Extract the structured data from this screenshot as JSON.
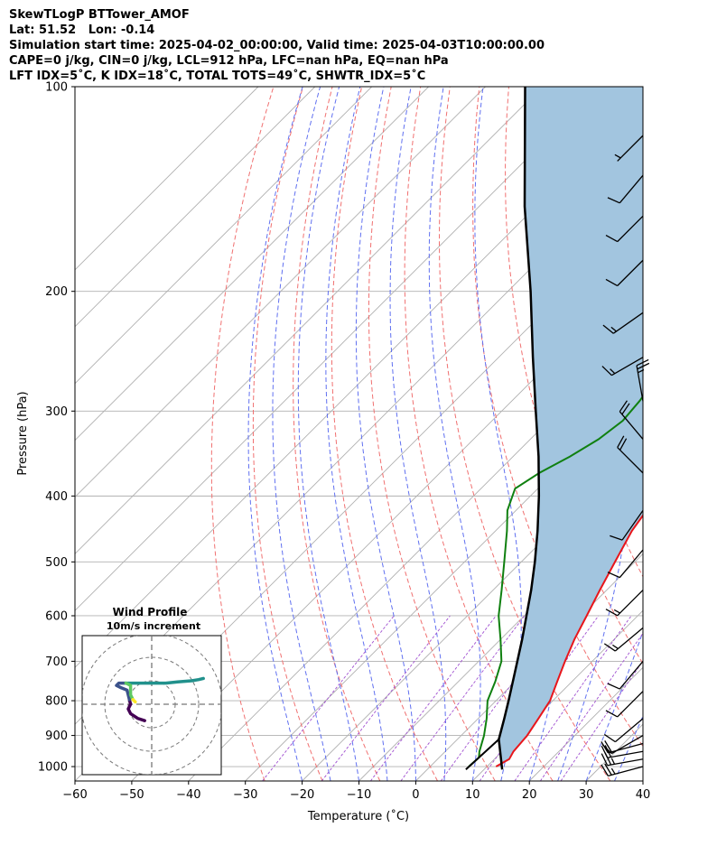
{
  "header": {
    "line1": "SkewTLogP BTTower_AMOF",
    "line2": "Lat: 51.52   Lon: -0.14",
    "line3": "Simulation start time: 2025-04-02_00:00:00, Valid time: 2025-04-03T10:00:00.00",
    "line4": "CAPE=0 j/kg, CIN=0 j/kg, LCL=912 hPa, LFC=nan hPa, EQ=nan hPa",
    "line5": "LFT IDX=5˚C, K IDX=18˚C, TOTAL TOTS=49˚C, SHWTR_IDX=5˚C"
  },
  "chart_data": [
    {
      "type": "line",
      "subtype": "skew-t log-p",
      "xlabel": "Temperature (˚C)",
      "ylabel": "Pressure (hPa)",
      "xlim": [
        -60,
        40
      ],
      "ylim_pressure": [
        1050,
        100
      ],
      "y_scale": "log",
      "x_ticks": [
        -60,
        -50,
        -40,
        -30,
        -20,
        -10,
        0,
        10,
        20,
        30,
        40
      ],
      "x_tick_labels": [
        "−60",
        "−50",
        "−40",
        "−30",
        "−20",
        "−10",
        "0",
        "10",
        "20",
        "30",
        "40"
      ],
      "y_ticks": [
        1000,
        900,
        800,
        700,
        600,
        500,
        400,
        300,
        200,
        100
      ],
      "y_tick_labels": [
        "1000",
        "900",
        "800",
        "700",
        "600",
        "500",
        "400",
        "300",
        "200",
        "100"
      ],
      "grid": true,
      "colors": {
        "temperature": "#e8161b",
        "dewpoint": "#108010",
        "parcel": "#000000",
        "shade": "#a2c5df",
        "isotherm": "#b0b0b0",
        "dry_adiabat": "#f07070",
        "moist_adiabat": "#6070f0",
        "mixing_ratio": "#a050d0"
      },
      "series": [
        {
          "key": "temperature",
          "points": [
            [
              1000,
              11.6
            ],
            [
              975,
              12.6
            ],
            [
              950,
              12.0
            ],
            [
              900,
              11.6
            ],
            [
              850,
              10.6
            ],
            [
              800,
              9.5
            ],
            [
              750,
              7.4
            ],
            [
              700,
              5.2
            ],
            [
              650,
              3.0
            ],
            [
              600,
              1.0
            ],
            [
              550,
              -1.2
            ],
            [
              500,
              -3.5
            ],
            [
              450,
              -6.0
            ],
            [
              420,
              -7.0
            ],
            [
              380,
              -7.5
            ],
            [
              350,
              -9.0
            ],
            [
              320,
              -11.5
            ],
            [
              300,
              -13.0
            ],
            [
              280,
              -14.0
            ],
            [
              260,
              -14.5
            ],
            [
              240,
              -14.0
            ],
            [
              220,
              -14.5
            ],
            [
              200,
              -16.5
            ],
            [
              190,
              -17.5
            ],
            [
              180,
              -17.5
            ],
            [
              170,
              -18.5
            ],
            [
              160,
              -20.0
            ],
            [
              150,
              -21.5
            ],
            [
              140,
              -23.5
            ],
            [
              130,
              -25.5
            ],
            [
              120,
              -28.5
            ],
            [
              110,
              -32.0
            ],
            [
              100,
              -35.0
            ]
          ]
        },
        {
          "key": "dewpoint",
          "points": [
            [
              1000,
              6.8
            ],
            [
              970,
              7.0
            ],
            [
              950,
              6.0
            ],
            [
              900,
              4.0
            ],
            [
              850,
              1.5
            ],
            [
              800,
              -1.5
            ],
            [
              750,
              -3.5
            ],
            [
              700,
              -6.0
            ],
            [
              650,
              -10.0
            ],
            [
              600,
              -14.5
            ],
            [
              550,
              -18.5
            ],
            [
              500,
              -23.0
            ],
            [
              450,
              -28.0
            ],
            [
              420,
              -31.5
            ],
            [
              390,
              -34.0
            ],
            [
              370,
              -32.5
            ],
            [
              350,
              -30.0
            ],
            [
              330,
              -28.0
            ],
            [
              310,
              -27.0
            ],
            [
              290,
              -27.5
            ],
            [
              270,
              -28.5
            ],
            [
              250,
              -30.0
            ],
            [
              240,
              -33.0
            ],
            [
              230,
              -38.0
            ],
            [
              220,
              -40.5
            ],
            [
              200,
              -40.5
            ],
            [
              190,
              -40.0
            ],
            [
              180,
              -41.0
            ],
            [
              170,
              -41.5
            ],
            [
              160,
              -41.0
            ],
            [
              150,
              -42.5
            ],
            [
              135,
              -45.0
            ],
            [
              120,
              -48.5
            ],
            [
              110,
              -51.5
            ],
            [
              100,
              -55.0
            ]
          ]
        },
        {
          "key": "parcel",
          "points": [
            [
              1010,
              13.2
            ],
            [
              912,
              7.3
            ],
            [
              850,
              4.6
            ],
            [
              800,
              2.2
            ],
            [
              750,
              -0.4
            ],
            [
              700,
              -3.2
            ],
            [
              650,
              -6.2
            ],
            [
              600,
              -9.6
            ],
            [
              550,
              -13.3
            ],
            [
              500,
              -17.6
            ],
            [
              450,
              -22.6
            ],
            [
              400,
              -28.5
            ],
            [
              350,
              -35.5
            ],
            [
              300,
              -44.0
            ],
            [
              250,
              -54.0
            ],
            [
              200,
              -66.0
            ],
            [
              150,
              -82.0
            ],
            [
              100,
              -103.0
            ]
          ]
        },
        {
          "key": "parcel-surface-leg",
          "points": [
            [
              1010,
              6.8
            ],
            [
              912,
              7.3
            ]
          ]
        }
      ],
      "wind_barbs": [
        {
          "pressure": 1000,
          "speed_kt": 25,
          "dir_deg": 255
        },
        {
          "pressure": 975,
          "speed_kt": 25,
          "dir_deg": 260
        },
        {
          "pressure": 950,
          "speed_kt": 20,
          "dir_deg": 260
        },
        {
          "pressure": 925,
          "speed_kt": 20,
          "dir_deg": 255
        },
        {
          "pressure": 900,
          "speed_kt": 10,
          "dir_deg": 240
        },
        {
          "pressure": 850,
          "speed_kt": 10,
          "dir_deg": 230
        },
        {
          "pressure": 775,
          "speed_kt": 10,
          "dir_deg": 225
        },
        {
          "pressure": 700,
          "speed_kt": 10,
          "dir_deg": 220
        },
        {
          "pressure": 625,
          "speed_kt": 15,
          "dir_deg": 230
        },
        {
          "pressure": 550,
          "speed_kt": 15,
          "dir_deg": 225
        },
        {
          "pressure": 480,
          "speed_kt": 10,
          "dir_deg": 220
        },
        {
          "pressure": 420,
          "speed_kt": 10,
          "dir_deg": 215
        },
        {
          "pressure": 370,
          "speed_kt": 20,
          "dir_deg": 315
        },
        {
          "pressure": 330,
          "speed_kt": 20,
          "dir_deg": 320
        },
        {
          "pressure": 290,
          "speed_kt": 25,
          "dir_deg": 350
        },
        {
          "pressure": 250,
          "speed_kt": 15,
          "dir_deg": 240
        },
        {
          "pressure": 215,
          "speed_kt": 15,
          "dir_deg": 235
        },
        {
          "pressure": 180,
          "speed_kt": 10,
          "dir_deg": 225
        },
        {
          "pressure": 155,
          "speed_kt": 10,
          "dir_deg": 225
        },
        {
          "pressure": 135,
          "speed_kt": 10,
          "dir_deg": 220
        },
        {
          "pressure": 118,
          "speed_kt": 5,
          "dir_deg": 225
        }
      ]
    },
    {
      "type": "line",
      "subtype": "hodograph",
      "title": "Wind Profile",
      "subtitle": "10m/s increment",
      "rings_ms": [
        10,
        20,
        30
      ],
      "colormap": [
        "#440154",
        "#3b528b",
        "#21918c",
        "#5ec962",
        "#fde725"
      ],
      "segments": [
        {
          "color": "#440154",
          "points": [
            [
              -3,
              -7
            ],
            [
              -6,
              -6
            ],
            [
              -9,
              -4
            ],
            [
              -10,
              -2
            ],
            [
              -9,
              0
            ],
            [
              -9.5,
              2
            ]
          ]
        },
        {
          "color": "#3b528b",
          "points": [
            [
              -9.5,
              2
            ],
            [
              -10,
              4
            ],
            [
              -10.5,
              6
            ],
            [
              -13,
              7
            ],
            [
              -15,
              8
            ],
            [
              -14,
              9
            ],
            [
              -11,
              9
            ]
          ]
        },
        {
          "color": "#21918c",
          "points": [
            [
              -11,
              9
            ],
            [
              -6,
              9
            ],
            [
              0,
              9
            ],
            [
              6,
              9
            ],
            [
              11,
              9.5
            ],
            [
              17,
              10
            ],
            [
              20,
              10.5
            ],
            [
              22,
              11
            ]
          ]
        },
        {
          "color": "#5ec962",
          "points": [
            [
              -11,
              9
            ],
            [
              -9,
              8
            ],
            [
              -9,
              6
            ],
            [
              -9,
              4
            ],
            [
              -8,
              2
            ]
          ]
        },
        {
          "color": "#fde725",
          "points": [
            [
              -8,
              2
            ],
            [
              -7,
              1
            ]
          ]
        }
      ]
    }
  ]
}
